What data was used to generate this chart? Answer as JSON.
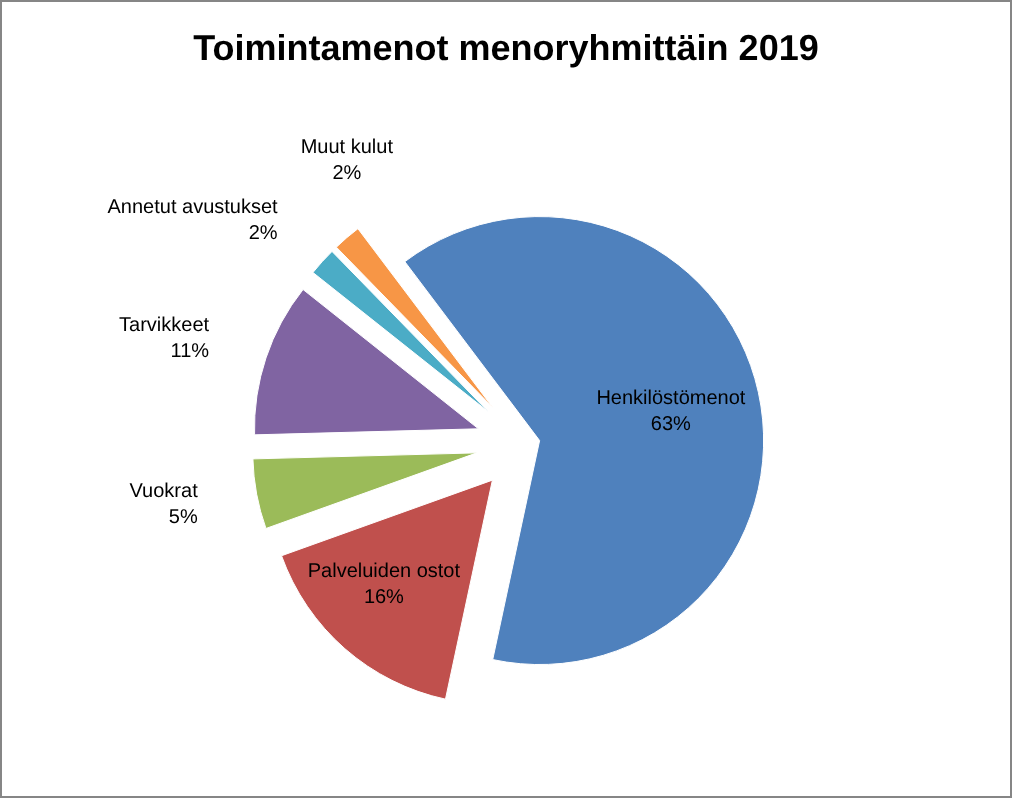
{
  "chart_data": {
    "type": "pie",
    "title": "Toimintamenot menoryhmittäin 2019",
    "categories": [
      "Henkilöstömenot",
      "Palveluiden ostot",
      "Vuokrat",
      "Tarvikkeet",
      "Annetut avustukset",
      "Muut kulut"
    ],
    "values": [
      63,
      16,
      5,
      11,
      2,
      2
    ],
    "value_labels": [
      "63%",
      "16%",
      "5%",
      "11%",
      "2%",
      "2%"
    ],
    "colors": [
      "#4f81bd",
      "#c0504d",
      "#9bbb59",
      "#8064a2",
      "#4bacc6",
      "#f79646"
    ]
  }
}
